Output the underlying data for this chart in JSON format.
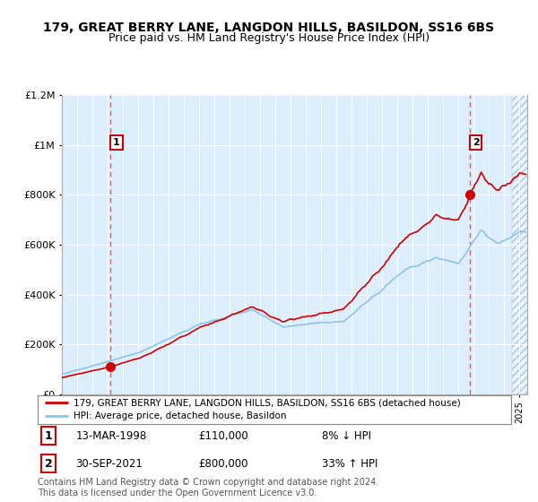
{
  "title": "179, GREAT BERRY LANE, LANGDON HILLS, BASILDON, SS16 6BS",
  "subtitle": "Price paid vs. HM Land Registry's House Price Index (HPI)",
  "sale1_date": "13-MAR-1998",
  "sale1_price": 110000,
  "sale1_label": "8% ↓ HPI",
  "sale1_year": 1998.2,
  "sale2_date": "30-SEP-2021",
  "sale2_price": 800000,
  "sale2_label": "33% ↑ HPI",
  "sale2_year": 2021.75,
  "legend_line1": "179, GREAT BERRY LANE, LANGDON HILLS, BASILDON, SS16 6BS (detached house)",
  "legend_line2": "HPI: Average price, detached house, Basildon",
  "footer": "Contains HM Land Registry data © Crown copyright and database right 2024.\nThis data is licensed under the Open Government Licence v3.0.",
  "hpi_color": "#8ec4e8",
  "price_color": "#cc0000",
  "bg_color": "#ddeeff",
  "ylim_max": 1200000,
  "xlim_min": 1995.0,
  "xlim_max": 2025.5,
  "yticks": [
    0,
    200000,
    400000,
    600000,
    800000,
    1000000,
    1200000
  ],
  "ytick_labels": [
    "£0",
    "£200K",
    "£400K",
    "£600K",
    "£800K",
    "£1M",
    "£1.2M"
  ]
}
